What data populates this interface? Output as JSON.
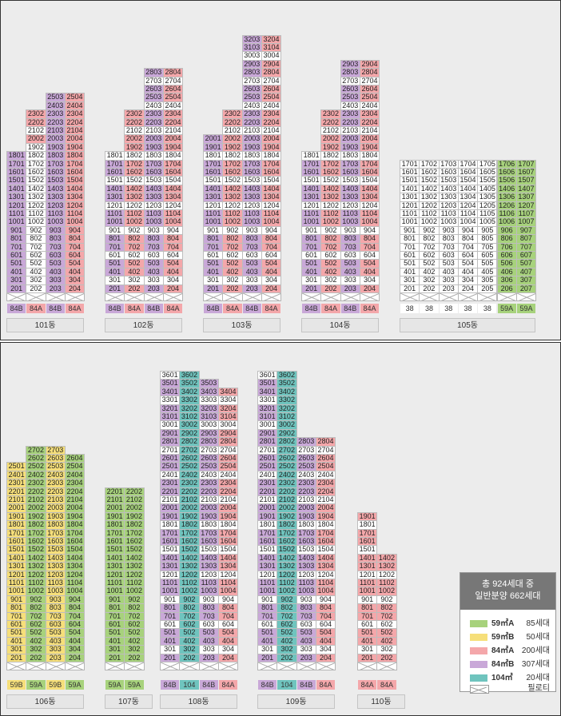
{
  "colors": {
    "p": "#d5bde0",
    "r": "#f6b9bb",
    "w": "#ffffff",
    "g": "#b3d88c",
    "y": "#f7e28a",
    "t": "#7fcdc8"
  },
  "panels": [
    {
      "buildings": [
        {
          "name": "101동",
          "left": 8,
          "floors": {
            "first": 2,
            "last": 25,
            "stacks": [
              {
                "label": "84B",
                "color": "p",
                "top": 18,
                "pat": {
                  "ranges": [
                    [
                      2,
                      18,
                      "p"
                    ],
                    [
                      19,
                      19,
                      "w"
                    ]
                  ]
                }
              },
              {
                "label": "84A",
                "color": "r",
                "top": 23,
                "pat": {
                  "ranges": [
                    [
                      2,
                      18,
                      "w"
                    ],
                    [
                      19,
                      19,
                      "w"
                    ],
                    [
                      20,
                      20,
                      "r"
                    ],
                    [
                      21,
                      21,
                      "w"
                    ],
                    [
                      22,
                      22,
                      "r"
                    ],
                    [
                      23,
                      23,
                      "r"
                    ]
                  ]
                }
              },
              {
                "label": "84B",
                "color": "p",
                "top": 25,
                "pat": {
                  "ranges": [
                    [
                      2,
                      25,
                      "p"
                    ]
                  ]
                }
              },
              {
                "label": "84A",
                "color": "r",
                "top": 25,
                "pat": {
                  "ranges": [
                    [
                      2,
                      25,
                      "r"
                    ]
                  ]
                }
              }
            ]
          }
        },
        {
          "name": "102동",
          "left": 131,
          "floors": {
            "first": 2,
            "last": 28,
            "stacks": [
              {
                "label": "84B",
                "color": "p",
                "top": 18
              },
              {
                "label": "84A",
                "color": "r",
                "top": 23
              },
              {
                "label": "84B",
                "color": "p",
                "top": 28
              },
              {
                "label": "84A",
                "color": "r",
                "top": 28
              }
            ]
          }
        },
        {
          "name": "103동",
          "left": 254,
          "floors": {
            "first": 2,
            "last": 32,
            "stacks": [
              {
                "label": "84B",
                "color": "p",
                "top": 20
              },
              {
                "label": "84A",
                "color": "r",
                "top": 23
              },
              {
                "label": "84B",
                "color": "p",
                "top": 32
              },
              {
                "label": "84A",
                "color": "r",
                "top": 32
              }
            ]
          }
        },
        {
          "name": "104동",
          "left": 377,
          "floors": {
            "first": 2,
            "last": 29,
            "stacks": [
              {
                "label": "84B",
                "color": "p",
                "top": 18
              },
              {
                "label": "84A",
                "color": "r",
                "top": 23
              },
              {
                "label": "84B",
                "color": "p",
                "top": 29
              },
              {
                "label": "84A",
                "color": "r",
                "top": 29
              }
            ]
          }
        },
        {
          "name": "105동",
          "left": 500,
          "floors": {
            "first": 2,
            "last": 17,
            "stacks": [
              {
                "label": "38",
                "color": "w",
                "top": 17
              },
              {
                "label": "38",
                "color": "w",
                "top": 17
              },
              {
                "label": "38",
                "color": "w",
                "top": 17
              },
              {
                "label": "38",
                "color": "w",
                "top": 17
              },
              {
                "label": "38",
                "color": "w",
                "top": 17
              },
              {
                "label": "59A",
                "color": "g",
                "top": 17
              },
              {
                "label": "59A",
                "color": "g",
                "top": 17
              }
            ]
          }
        }
      ]
    },
    {
      "buildings": [
        {
          "name": "106동",
          "left": 8,
          "floors": {
            "first": 2,
            "last": 27,
            "stacks": [
              {
                "label": "59B",
                "color": "y",
                "top": 25
              },
              {
                "label": "59A",
                "color": "g",
                "top": 27
              },
              {
                "label": "59B",
                "color": "y",
                "top": 27
              },
              {
                "label": "59A",
                "color": "g",
                "top": 26
              }
            ]
          }
        },
        {
          "name": "107동",
          "left": 131,
          "floors": {
            "first": 2,
            "last": 22,
            "stacks": [
              {
                "label": "59A",
                "color": "g",
                "top": 22
              },
              {
                "label": "59A",
                "color": "g",
                "top": 22
              }
            ]
          }
        },
        {
          "name": "108동",
          "left": 200,
          "floors": {
            "first": 2,
            "last": 36,
            "stacks": [
              {
                "label": "84B",
                "color": "p",
                "top": 36
              },
              {
                "label": "104",
                "color": "t",
                "top": 36
              },
              {
                "label": "84B",
                "color": "p",
                "top": 35
              },
              {
                "label": "84A",
                "color": "r",
                "top": 34
              }
            ]
          }
        },
        {
          "name": "109동",
          "left": 322,
          "floors": {
            "first": 2,
            "last": 36,
            "stacks": [
              {
                "label": "84B",
                "color": "p",
                "top": 36
              },
              {
                "label": "104",
                "color": "t",
                "top": 36
              },
              {
                "label": "84B",
                "color": "p",
                "top": 28
              },
              {
                "label": "84A",
                "color": "r",
                "top": 28
              }
            ]
          }
        },
        {
          "name": "110동",
          "left": 447,
          "floors": {
            "first": 2,
            "last": 19,
            "stacks": [
              {
                "label": "84A",
                "color": "r",
                "top": 19
              },
              {
                "label": "84A",
                "color": "r",
                "top": 14
              }
            ]
          }
        }
      ]
    }
  ],
  "legend": {
    "title_line1": "총 924세대 중",
    "title_line2": "일반분양 662세대",
    "items": [
      {
        "name": "59㎡A",
        "count": "85세대",
        "color": "#a7d27c"
      },
      {
        "name": "59㎡B",
        "count": "50세대",
        "color": "#f6df7a"
      },
      {
        "name": "84㎡A",
        "count": "200세대",
        "color": "#f4a7aa"
      },
      {
        "name": "84㎡B",
        "count": "307세대",
        "color": "#c9a8d8"
      },
      {
        "name": "104㎡",
        "count": "20세대",
        "color": "#6fc4be"
      },
      {
        "name": "필로티",
        "count": "",
        "color": "pilotis"
      }
    ]
  }
}
